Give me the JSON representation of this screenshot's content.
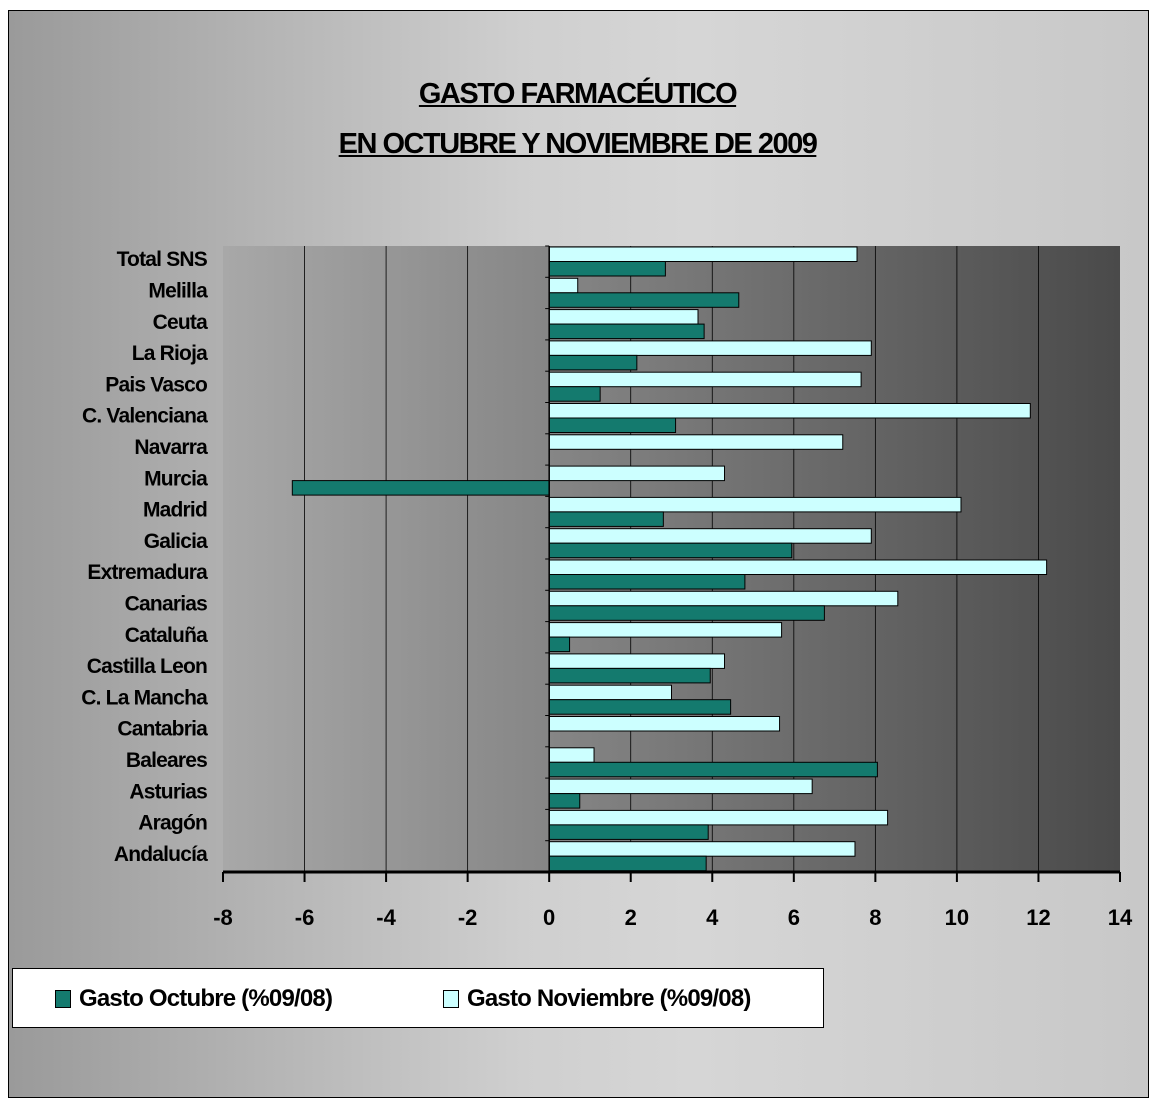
{
  "chart_data": {
    "type": "bar",
    "orientation": "horizontal",
    "title": [
      "GASTO FARMACÉUTICO",
      "EN OCTUBRE Y NOVIEMBRE DE 2009"
    ],
    "categories": [
      "Total SNS",
      "Melilla",
      "Ceuta",
      "La Rioja",
      "Pais Vasco",
      "C. Valenciana",
      "Navarra",
      "Murcia",
      "Madrid",
      "Galicia",
      "Extremadura",
      "Canarias",
      "Cataluña",
      "Castilla Leon",
      "C. La Mancha",
      "Cantabria",
      "Baleares",
      "Asturias",
      "Aragón",
      "Andalucía"
    ],
    "series": [
      {
        "name": "Gasto Octubre (%09/08)",
        "color": "#147a6e",
        "values": [
          2.85,
          4.65,
          3.8,
          2.15,
          1.25,
          3.1,
          0,
          -6.3,
          2.8,
          5.95,
          4.8,
          6.75,
          0.5,
          3.95,
          4.45,
          0,
          8.05,
          0.75,
          3.9,
          3.85
        ]
      },
      {
        "name": "Gasto Noviembre (%09/08)",
        "color": "#ccffff",
        "values": [
          7.55,
          0.7,
          3.65,
          7.9,
          7.65,
          11.8,
          7.2,
          4.3,
          10.1,
          7.9,
          12.2,
          8.55,
          5.7,
          4.3,
          3.0,
          5.65,
          1.1,
          6.45,
          8.3,
          7.5
        ]
      }
    ],
    "xlim": [
      -8,
      14
    ],
    "xticks": [
      "-8",
      "-6",
      "-4",
      "-2",
      "0",
      "2",
      "4",
      "6",
      "8",
      "10",
      "12",
      "14"
    ],
    "grid": true,
    "legend_position": "bottom-left"
  }
}
